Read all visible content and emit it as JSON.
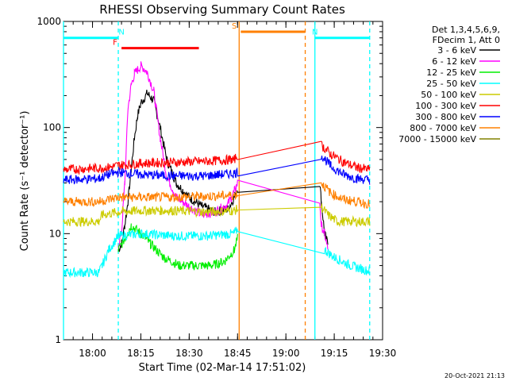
{
  "chart_data": {
    "type": "line",
    "title": "RHESSI Observing Summary Count Rates",
    "ylabel": "Count Rate (s⁻¹ detector⁻¹)",
    "xlabel": "Start Time (02-Mar-14 17:51:02)",
    "y_scale": "log",
    "ylim": [
      1,
      1000
    ],
    "xlim": [
      "17:51:02",
      "19:30"
    ],
    "y_ticks": [
      {
        "value": 1,
        "label": "1"
      },
      {
        "value": 10,
        "label": "10"
      },
      {
        "value": 100,
        "label": "100"
      },
      {
        "value": 1000,
        "label": "1000"
      }
    ],
    "x_ticks": [
      {
        "value": "18:00",
        "label": "18:00"
      },
      {
        "value": "18:15",
        "label": "18:15"
      },
      {
        "value": "18:30",
        "label": "18:30"
      },
      {
        "value": "18:45",
        "label": "18:45"
      },
      {
        "value": "19:00",
        "label": "19:00"
      },
      {
        "value": "19:15",
        "label": "19:15"
      },
      {
        "value": "19:30",
        "label": "19:30"
      }
    ],
    "legend_header": [
      "Det 1,3,4,5,6,9,",
      "FDecim 1, Att 0"
    ],
    "legend_position": "right",
    "series": [
      {
        "name": "3 - 6 keV",
        "color": "#000000",
        "x": [
          "17:51",
          "18:08",
          "18:09",
          "18:10",
          "18:11",
          "18:12",
          "18:13",
          "18:14",
          "18:15",
          "18:17",
          "18:19",
          "18:21",
          "18:23",
          "18:26",
          "18:30",
          "18:34",
          "18:38",
          "18:42",
          "18:44",
          "18:45",
          "18:46",
          "19:10",
          "19:10.5",
          "19:11",
          "19:12",
          "19:13"
        ],
        "y": [
          null,
          7,
          8,
          12,
          20,
          40,
          80,
          130,
          170,
          210,
          180,
          100,
          50,
          30,
          22,
          18,
          16,
          17,
          22,
          27,
          null,
          null,
          30,
          20,
          10,
          8
        ]
      },
      {
        "name": "6 - 12 keV",
        "color": "#ff00ff",
        "x": [
          "17:51",
          "18:08",
          "18:09",
          "18:10",
          "18:11",
          "18:12",
          "18:13",
          "18:14",
          "18:15",
          "18:16",
          "18:17",
          "18:19",
          "18:21",
          "18:23",
          "18:26",
          "18:30",
          "18:34",
          "18:38",
          "18:42",
          "18:44",
          "18:45",
          "18:46",
          "19:10",
          "19:10.5",
          "19:11",
          "19:12",
          "19:13"
        ],
        "y": [
          null,
          8,
          10,
          30,
          150,
          250,
          320,
          350,
          380,
          360,
          330,
          220,
          80,
          35,
          22,
          18,
          15,
          16,
          19,
          25,
          30,
          null,
          null,
          20,
          12,
          10,
          7
        ]
      },
      {
        "name": "12 - 25 keV",
        "color": "#00ee00",
        "x": [
          "17:51",
          "18:05",
          "18:07",
          "18:08",
          "18:10",
          "18:12",
          "18:15",
          "18:18",
          "18:22",
          "18:27",
          "18:32",
          "18:37",
          "18:41",
          "18:44",
          "18:45"
        ],
        "y": [
          null,
          null,
          null,
          7,
          9,
          12,
          10,
          8,
          6,
          5,
          5,
          5,
          5.5,
          7,
          9
        ]
      },
      {
        "name": "25 - 50 keV",
        "color": "#00ffff",
        "x": [
          "17:51",
          "18:02",
          "18:03",
          "18:05",
          "18:08",
          "18:15",
          "18:25",
          "18:35",
          "18:44",
          "18:45",
          "18:46",
          "19:10",
          "19:12",
          "19:15",
          "19:20",
          "19:25",
          "19:26"
        ],
        "y": [
          4.3,
          4.3,
          5,
          7,
          9.5,
          10,
          9.5,
          9.5,
          10,
          11,
          null,
          null,
          7,
          6,
          5,
          4.5,
          4.5
        ]
      },
      {
        "name": "50 - 100 keV",
        "color": "#cccc00",
        "x": [
          "17:51",
          "18:02",
          "18:03",
          "18:08",
          "18:15",
          "18:25",
          "18:35",
          "18:44",
          "18:45",
          "18:46",
          "19:10",
          "19:11",
          "19:13",
          "19:16",
          "19:20",
          "19:25",
          "19:26"
        ],
        "y": [
          13,
          13,
          15,
          16,
          16.5,
          16.5,
          16,
          16.5,
          17,
          null,
          null,
          18,
          15,
          13,
          13,
          13,
          13
        ]
      },
      {
        "name": "100 - 300 keV",
        "color": "#ff0000",
        "x": [
          "17:51",
          "18:05",
          "18:08",
          "18:15",
          "18:25",
          "18:35",
          "18:44",
          "18:45",
          "18:46",
          "19:10",
          "19:11",
          "19:14",
          "19:18",
          "19:22",
          "19:26"
        ],
        "y": [
          40,
          42,
          44,
          46,
          47,
          48,
          50,
          55,
          null,
          null,
          68,
          56,
          47,
          42,
          40
        ]
      },
      {
        "name": "300 - 800 keV",
        "color": "#0000ff",
        "x": [
          "17:51",
          "18:02",
          "18:05",
          "18:08",
          "18:15",
          "18:25",
          "18:35",
          "18:44",
          "18:45",
          "18:46",
          "19:10",
          "19:11",
          "19:14",
          "19:18",
          "19:22",
          "19:26"
        ],
        "y": [
          32,
          33,
          36,
          38,
          36,
          35,
          35,
          37,
          38,
          null,
          null,
          55,
          43,
          36,
          33,
          32
        ]
      },
      {
        "name": "800 - 7000 keV",
        "color": "#ff8000",
        "x": [
          "17:51",
          "18:02",
          "18:05",
          "18:08",
          "18:15",
          "18:25",
          "18:35",
          "18:44",
          "18:45",
          "18:46",
          "19:10",
          "19:11",
          "19:14",
          "19:18",
          "19:22",
          "19:26"
        ],
        "y": [
          20,
          20,
          21,
          22,
          22,
          22,
          22.5,
          23,
          24,
          null,
          null,
          30,
          24,
          21,
          20,
          19
        ]
      },
      {
        "name": "7000 - 15000 keV",
        "color": "#808000",
        "x": [],
        "y": []
      }
    ],
    "vertical_lines": [
      {
        "x": "17:51",
        "color": "#00ffff",
        "style": "solid"
      },
      {
        "x": "18:08",
        "color": "#00ffff",
        "style": "dashed"
      },
      {
        "x": "18:45.5",
        "color": "#ff8000",
        "style": "solid"
      },
      {
        "x": "19:06",
        "color": "#ff8000",
        "style": "dashed"
      },
      {
        "x": "19:09",
        "color": "#00ffff",
        "style": "solid"
      },
      {
        "x": "19:26",
        "color": "#00ffff",
        "style": "dashed"
      }
    ],
    "flag_bars": [
      {
        "label": "N",
        "color": "#00ffff",
        "x_start": "17:51",
        "x_end": "18:08",
        "y_level": 700,
        "label_x": "18:09"
      },
      {
        "label": "N",
        "color": "#00ffff",
        "x_start": "19:09",
        "x_end": "19:26",
        "y_level": 700,
        "label_x": "19:09"
      },
      {
        "label": "F",
        "color": "#ff0000",
        "x_start": "18:09",
        "x_end": "18:33",
        "y_level": 560,
        "label_x": "18:07"
      },
      {
        "label": "S",
        "color": "#ff8000",
        "x_start": "18:46",
        "x_end": "19:06",
        "y_level": 800,
        "label_x": "18:44"
      }
    ]
  },
  "timestamp": "20-Oct-2021 21:13"
}
